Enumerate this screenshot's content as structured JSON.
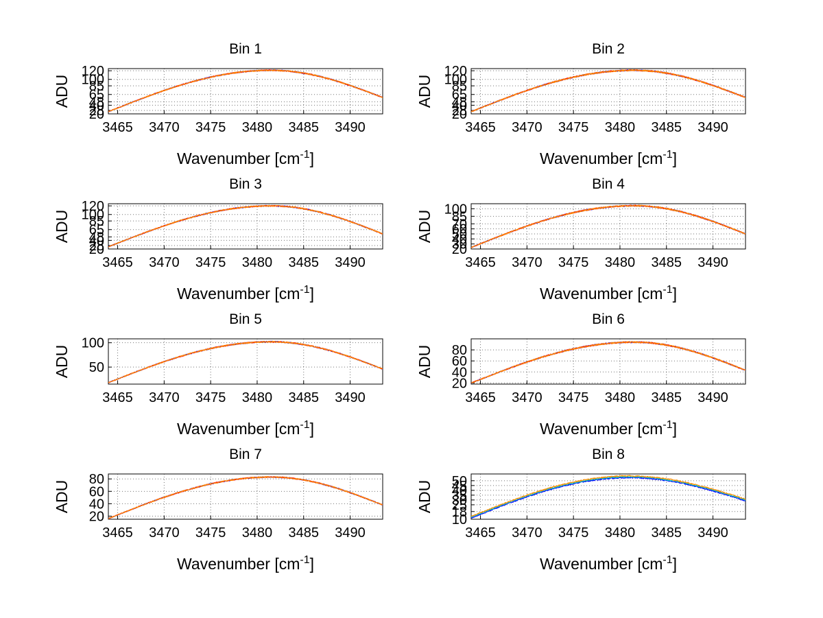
{
  "chart_data": [
    {
      "type": "line",
      "title": "Bin 1",
      "xlabel": "Wavenumber [cm",
      "xlabel_sup": "-1",
      "xlabel_end": "]",
      "ylabel": "ADU",
      "xlim": [
        3464,
        3493.5
      ],
      "ylim": [
        20,
        125
      ],
      "xticks": [
        3465,
        3470,
        3475,
        3480,
        3485,
        3490
      ],
      "yticks": [
        20,
        28,
        40,
        48,
        65,
        85,
        100,
        120
      ],
      "ytick_labels": [
        "20",
        "28",
        "40",
        "48",
        "65",
        "85",
        "100",
        "120"
      ],
      "peak": 121,
      "left": 25,
      "right": 58,
      "center": 3481.5,
      "noise": 1.6,
      "series_colors": [
        "#0000ff",
        "#ff0000",
        "#ff8c00"
      ]
    },
    {
      "type": "line",
      "title": "Bin 2",
      "xlabel": "Wavenumber [cm",
      "xlabel_sup": "-1",
      "xlabel_end": "]",
      "ylabel": "ADU",
      "xlim": [
        3464,
        3493.5
      ],
      "ylim": [
        20,
        125
      ],
      "xticks": [
        3465,
        3470,
        3475,
        3480,
        3485,
        3490
      ],
      "yticks": [
        20,
        28,
        40,
        48,
        65,
        85,
        100,
        120
      ],
      "ytick_labels": [
        "20",
        "28",
        "40",
        "48",
        "65",
        "85",
        "100",
        "120"
      ],
      "peak": 121,
      "left": 25,
      "right": 58,
      "center": 3481.5,
      "noise": 1.8,
      "series_colors": [
        "#0000ff",
        "#ff0000",
        "#ff8c00"
      ]
    },
    {
      "type": "line",
      "title": "Bin 3",
      "xlabel": "Wavenumber [cm",
      "xlabel_sup": "-1",
      "xlabel_end": "]",
      "ylabel": "ADU",
      "xlim": [
        3464,
        3493.5
      ],
      "ylim": [
        20,
        125
      ],
      "xticks": [
        3465,
        3470,
        3475,
        3480,
        3485,
        3490
      ],
      "yticks": [
        20,
        28,
        40,
        48,
        65,
        85,
        100,
        120
      ],
      "ytick_labels": [
        "20",
        "28",
        "40",
        "48",
        "65",
        "85",
        "100",
        "120"
      ],
      "peak": 120,
      "left": 25,
      "right": 55,
      "center": 3481.5,
      "noise": 1.6,
      "series_colors": [
        "#0000ff",
        "#ff0000",
        "#ff8c00"
      ]
    },
    {
      "type": "line",
      "title": "Bin 4",
      "xlabel": "Wavenumber [cm",
      "xlabel_sup": "-1",
      "xlabel_end": "]",
      "ylabel": "ADU",
      "xlim": [
        3464,
        3493.5
      ],
      "ylim": [
        20,
        110
      ],
      "xticks": [
        3465,
        3470,
        3475,
        3480,
        3485,
        3490
      ],
      "yticks": [
        20,
        30,
        40,
        50,
        60,
        70,
        85,
        100
      ],
      "ytick_labels": [
        "20",
        "30",
        "40",
        "50",
        "60",
        "70",
        "85",
        "100"
      ],
      "peak": 106,
      "left": 23,
      "right": 50,
      "center": 3481.5,
      "noise": 1.5,
      "series_colors": [
        "#0000ff",
        "#ff0000",
        "#ff8c00"
      ]
    },
    {
      "type": "line",
      "title": "Bin 5",
      "xlabel": "Wavenumber [cm",
      "xlabel_sup": "-1",
      "xlabel_end": "]",
      "ylabel": "ADU",
      "xlim": [
        3464,
        3493.5
      ],
      "ylim": [
        15,
        108
      ],
      "xticks": [
        3465,
        3470,
        3475,
        3480,
        3485,
        3490
      ],
      "yticks": [
        50,
        100
      ],
      "ytick_labels": [
        "50",
        "100"
      ],
      "peak": 102,
      "left": 18,
      "right": 46,
      "center": 3481.5,
      "noise": 1.4,
      "series_colors": [
        "#0000ff",
        "#ff0000",
        "#ff8c00"
      ]
    },
    {
      "type": "line",
      "title": "Bin 6",
      "xlabel": "Wavenumber [cm",
      "xlabel_sup": "-1",
      "xlabel_end": "]",
      "ylabel": "ADU",
      "xlim": [
        3464,
        3493.5
      ],
      "ylim": [
        18,
        100
      ],
      "xticks": [
        3465,
        3470,
        3475,
        3480,
        3485,
        3490
      ],
      "yticks": [
        20,
        40,
        60,
        80
      ],
      "ytick_labels": [
        "20",
        "40",
        "60",
        "80"
      ],
      "peak": 94,
      "left": 20,
      "right": 43,
      "center": 3481.5,
      "noise": 1.4,
      "series_colors": [
        "#0000ff",
        "#ff0000",
        "#ff8c00"
      ]
    },
    {
      "type": "line",
      "title": "Bin 7",
      "xlabel": "Wavenumber [cm",
      "xlabel_sup": "-1",
      "xlabel_end": "]",
      "ylabel": "ADU",
      "xlim": [
        3464,
        3493.5
      ],
      "ylim": [
        15,
        88
      ],
      "xticks": [
        3465,
        3470,
        3475,
        3480,
        3485,
        3490
      ],
      "yticks": [
        20,
        40,
        60,
        80
      ],
      "ytick_labels": [
        "20",
        "40",
        "60",
        "80"
      ],
      "peak": 83,
      "left": 16,
      "right": 38,
      "center": 3481.5,
      "noise": 1.1,
      "series_colors": [
        "#0000ff",
        "#ff0000",
        "#ff8c00"
      ]
    },
    {
      "type": "line",
      "title": "Bin 8",
      "xlabel": "Wavenumber [cm",
      "xlabel_sup": "-1",
      "xlabel_end": "]",
      "ylabel": "ADU",
      "xlim": [
        3464,
        3493.5
      ],
      "ylim": [
        10,
        57
      ],
      "xticks": [
        3465,
        3470,
        3475,
        3480,
        3485,
        3490
      ],
      "yticks": [
        10,
        18,
        25,
        30,
        35,
        40,
        45,
        50
      ],
      "ytick_labels": [
        "10",
        "18",
        "25",
        "30",
        "35",
        "40",
        "45",
        "50"
      ],
      "peak": 54,
      "left": 12,
      "right": 30,
      "center": 3481.0,
      "noise": 0.7,
      "series_colors": [
        "#0000ff",
        "#00bfbf",
        "#ff8c00"
      ]
    }
  ]
}
